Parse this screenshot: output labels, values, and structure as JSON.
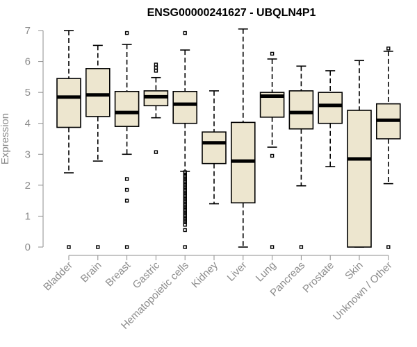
{
  "chart_data": {
    "type": "box",
    "title": "ENSG00000241627 - UBQLN4P1",
    "xlabel": "",
    "ylabel": "Expression",
    "ylim": [
      0,
      7
    ],
    "yticks": [
      0,
      1,
      2,
      3,
      4,
      5,
      6,
      7
    ],
    "box_color": "#ede6cf",
    "grid": false,
    "categories": [
      "Bladder",
      "Brain",
      "Breast",
      "Gastric",
      "Hematopoietic cells",
      "Kidney",
      "Liver",
      "Lung",
      "Pancreas",
      "Prostate",
      "Skin",
      "Unknown / Other"
    ],
    "boxes": [
      {
        "name": "Bladder",
        "whisker_low": 2.4,
        "q1": 3.87,
        "median": 4.85,
        "q3": 5.45,
        "whisker_high": 7.0,
        "outliers": [
          0
        ]
      },
      {
        "name": "Brain",
        "whisker_low": 2.78,
        "q1": 4.22,
        "median": 4.92,
        "q3": 5.77,
        "whisker_high": 6.52,
        "outliers": [
          0
        ]
      },
      {
        "name": "Breast",
        "whisker_low": 3.0,
        "q1": 3.9,
        "median": 4.35,
        "q3": 5.03,
        "whisker_high": 6.55,
        "outliers": [
          6.92,
          2.2,
          1.85,
          1.5,
          0
        ]
      },
      {
        "name": "Gastric",
        "whisker_low": 4.18,
        "q1": 4.57,
        "median": 4.86,
        "q3": 5.05,
        "whisker_high": 5.48,
        "outliers": [
          5.9,
          5.8,
          5.7,
          3.07
        ]
      },
      {
        "name": "Hematopoietic cells",
        "whisker_low": 2.45,
        "q1": 4.0,
        "median": 4.62,
        "q3": 5.03,
        "whisker_high": 6.37,
        "outliers": [
          6.92,
          2.42,
          2.35,
          2.3,
          2.25,
          2.2,
          2.15,
          2.1,
          2.05,
          2.0,
          1.95,
          1.9,
          1.85,
          1.8,
          1.75,
          1.7,
          1.65,
          1.6,
          1.55,
          1.5,
          1.45,
          1.4,
          1.35,
          1.3,
          1.25,
          1.2,
          1.15,
          1.1,
          1.05,
          1.0,
          0.95,
          0.9,
          0.85,
          0.8,
          0.72,
          0.55,
          0
        ]
      },
      {
        "name": "Kidney",
        "whisker_low": 1.4,
        "q1": 2.7,
        "median": 3.37,
        "q3": 3.72,
        "whisker_high": 5.05,
        "outliers": []
      },
      {
        "name": "Liver",
        "whisker_low": 0.0,
        "q1": 1.43,
        "median": 2.78,
        "q3": 4.03,
        "whisker_high": 7.05,
        "outliers": []
      },
      {
        "name": "Lung",
        "whisker_low": 3.23,
        "q1": 4.2,
        "median": 4.88,
        "q3": 5.0,
        "whisker_high": 6.08,
        "outliers": [
          6.25,
          2.95,
          0
        ]
      },
      {
        "name": "Pancreas",
        "whisker_low": 1.98,
        "q1": 3.82,
        "median": 4.35,
        "q3": 5.05,
        "whisker_high": 5.85,
        "outliers": [
          0
        ]
      },
      {
        "name": "Prostate",
        "whisker_low": 2.6,
        "q1": 4.0,
        "median": 4.58,
        "q3": 5.0,
        "whisker_high": 5.7,
        "outliers": []
      },
      {
        "name": "Skin",
        "whisker_low": 0.0,
        "q1": 0.0,
        "median": 2.85,
        "q3": 4.42,
        "whisker_high": 6.03,
        "outliers": []
      },
      {
        "name": "Unknown / Other",
        "whisker_low": 2.05,
        "q1": 3.5,
        "median": 4.1,
        "q3": 4.63,
        "whisker_high": 6.33,
        "outliers": [
          6.42,
          0
        ]
      }
    ]
  }
}
